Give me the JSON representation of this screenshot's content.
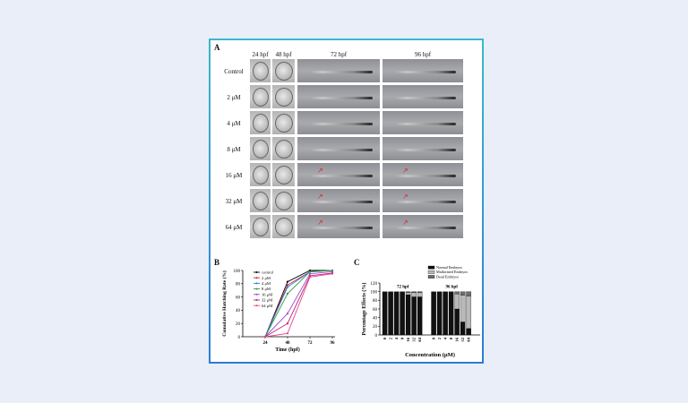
{
  "panelA": {
    "letter": "A",
    "columns": [
      "24 hpf",
      "48 hpf",
      "72 hpf",
      "96 hpf"
    ],
    "rows": [
      "Control",
      "2 μM",
      "4 μM",
      "8 μM",
      "16 μM",
      "32 μM",
      "64 μM"
    ]
  },
  "panelB": {
    "letter": "B",
    "ylabel": "Cumulative Hatching Rate (%)",
    "xlabel": "Time (hpf)",
    "legend": [
      "control",
      "2 μM",
      "4 μM",
      "8 μM",
      "16 μM",
      "32 μM",
      "64 μM"
    ],
    "colors": [
      "#000000",
      "#d8283a",
      "#2a7de1",
      "#2e9e3e",
      "#9a4bd1",
      "#c01f7a",
      "#e14b8a"
    ]
  },
  "panelC": {
    "letter": "C",
    "ylabel": "Percentage Effects (%)",
    "xlabel": "Concentration (μM)",
    "group_labels": [
      "72 hpf",
      "96 hpf"
    ],
    "legend": [
      "Normal Embryos",
      "Malformed Embryos",
      "Dead Embryos"
    ]
  },
  "chart_data": [
    {
      "type": "line",
      "title": "",
      "xlabel": "Time (hpf)",
      "ylabel": "Cumulative Hatching Rate (%)",
      "x": [
        24,
        48,
        72,
        96
      ],
      "xlim": [
        0,
        96
      ],
      "ylim": [
        0,
        100
      ],
      "yticks": [
        0,
        20,
        40,
        60,
        80,
        100
      ],
      "series": [
        {
          "name": "control",
          "values": [
            0,
            83,
            100,
            100
          ]
        },
        {
          "name": "2 μM",
          "values": [
            0,
            78,
            98,
            100
          ]
        },
        {
          "name": "4 μM",
          "values": [
            0,
            75,
            98,
            100
          ]
        },
        {
          "name": "8 μM",
          "values": [
            0,
            65,
            98,
            100
          ]
        },
        {
          "name": "16 μM",
          "values": [
            0,
            35,
            95,
            98
          ]
        },
        {
          "name": "32 μM",
          "values": [
            0,
            20,
            92,
            96
          ]
        },
        {
          "name": "64 μM",
          "values": [
            0,
            5,
            90,
            95
          ]
        }
      ]
    },
    {
      "type": "bar",
      "xlabel": "Concentration (μM)",
      "ylabel": "Percentage Effects (%)",
      "ylim": [
        0,
        120
      ],
      "yticks": [
        0,
        20,
        40,
        60,
        80,
        100,
        120
      ],
      "categories": [
        "0",
        "2",
        "4",
        "8",
        "16",
        "32",
        "64"
      ],
      "groups": [
        {
          "name": "72 hpf",
          "series": [
            {
              "name": "Normal Embryos",
              "values": [
                100,
                100,
                100,
                100,
                93,
                88,
                88
              ]
            },
            {
              "name": "Malformed Embryos",
              "values": [
                0,
                0,
                0,
                0,
                5,
                10,
                10
              ]
            },
            {
              "name": "Dead Embryos",
              "values": [
                0,
                0,
                0,
                0,
                2,
                2,
                2
              ]
            }
          ]
        },
        {
          "name": "96 hpf",
          "series": [
            {
              "name": "Normal Embryos",
              "values": [
                100,
                100,
                100,
                100,
                60,
                30,
                15
              ]
            },
            {
              "name": "Malformed Embryos",
              "values": [
                0,
                0,
                0,
                0,
                35,
                62,
                75
              ]
            },
            {
              "name": "Dead Embryos",
              "values": [
                0,
                0,
                0,
                0,
                5,
                8,
                10
              ]
            }
          ]
        }
      ]
    }
  ]
}
